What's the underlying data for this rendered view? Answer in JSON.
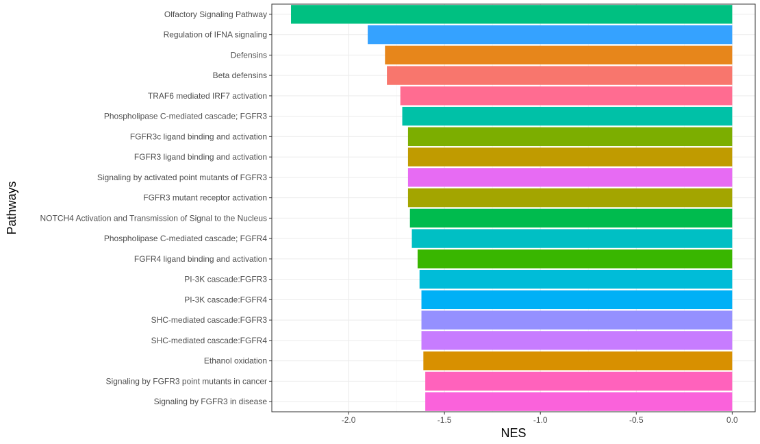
{
  "chart_data": {
    "type": "bar",
    "orientation": "horizontal",
    "xlabel": "NES",
    "ylabel": "Pathways",
    "xlim": [
      -2.4,
      0.12
    ],
    "xticks": [
      -2.0,
      -1.5,
      -1.0,
      -0.5,
      0.0
    ],
    "xtick_labels": [
      "-2.0",
      "-1.5",
      "-1.0",
      "-0.5",
      "0.0"
    ],
    "grid": true,
    "legend": "none",
    "categories": [
      "Olfactory Signaling Pathway",
      "Regulation of IFNA signaling",
      "Defensins",
      "Beta defensins",
      "TRAF6 mediated IRF7 activation",
      "Phospholipase C-mediated cascade; FGFR3",
      "FGFR3c ligand binding and activation",
      "FGFR3 ligand binding and activation",
      "Signaling by activated point mutants of FGFR3",
      "FGFR3 mutant receptor activation",
      "NOTCH4 Activation and Transmission of Signal to the Nucleus",
      "Phospholipase C-mediated cascade; FGFR4",
      "FGFR4 ligand binding and activation",
      "PI-3K cascade:FGFR3",
      "PI-3K cascade:FGFR4",
      "SHC-mediated cascade:FGFR3",
      "SHC-mediated cascade:FGFR4",
      "Ethanol oxidation",
      "Signaling by FGFR3 point mutants in cancer",
      "Signaling by FGFR3 in disease"
    ],
    "values": [
      -2.3,
      -1.9,
      -1.81,
      -1.8,
      -1.73,
      -1.72,
      -1.69,
      -1.69,
      -1.69,
      -1.69,
      -1.68,
      -1.67,
      -1.64,
      -1.63,
      -1.62,
      -1.62,
      -1.62,
      -1.61,
      -1.6,
      -1.6
    ],
    "colors": [
      "#00C081",
      "#35A2FF",
      "#E7861B",
      "#F8766D",
      "#FF6C91",
      "#00C1A7",
      "#7CAE00",
      "#C09B00",
      "#E76BF3",
      "#A3A500",
      "#00BB4E",
      "#00BFC4",
      "#39B600",
      "#00BCD8",
      "#00B0F6",
      "#9590FF",
      "#C77CFF",
      "#D89000",
      "#FF62BC",
      "#FA62DB"
    ]
  }
}
